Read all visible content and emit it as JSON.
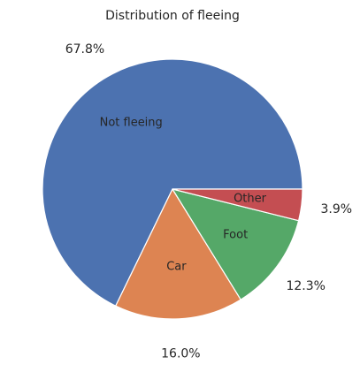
{
  "chart_data": {
    "type": "pie",
    "title": "Distribution of fleeing",
    "start_angle_deg": 0,
    "direction": "counterclockwise",
    "slices": [
      {
        "label": "Not fleeing",
        "value": 67.8,
        "pct_label": "67.8%",
        "color": "#4c72b0"
      },
      {
        "label": "Car",
        "value": 16.0,
        "pct_label": "16.0%",
        "color": "#dd8452"
      },
      {
        "label": "Foot",
        "value": 12.3,
        "pct_label": "12.3%",
        "color": "#55a868"
      },
      {
        "label": "Other",
        "value": 3.9,
        "pct_label": "3.9%",
        "color": "#c44e52"
      }
    ]
  }
}
